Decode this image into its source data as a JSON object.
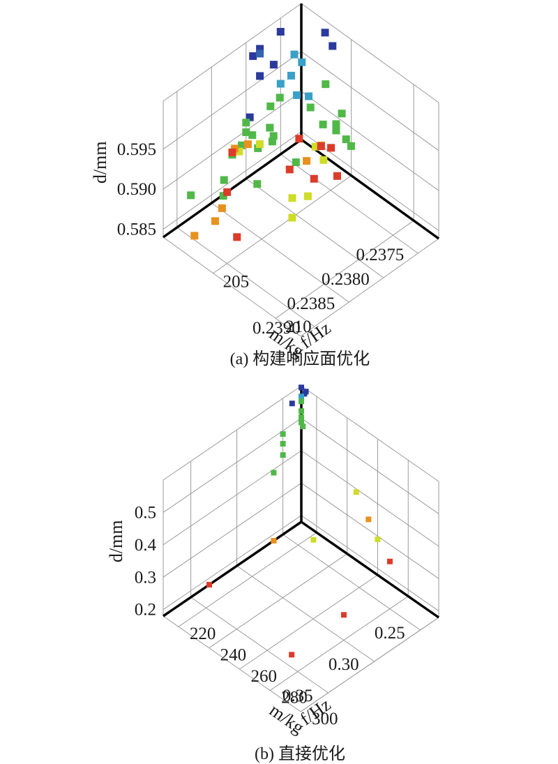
{
  "chart_data": [
    {
      "type": "scatter",
      "projection": "3d",
      "caption": "(a) 构建响应面优化",
      "xlabel": "m/kg",
      "ylabel": "f/Hz",
      "zlabel": "d/mm",
      "xticks": [
        "0.2375",
        "0.2380",
        "0.2385",
        "0.2390"
      ],
      "xtick_values": [
        0.2375,
        0.238,
        0.2385,
        0.239
      ],
      "yticks": [
        "205",
        "210"
      ],
      "ytick_values": [
        205,
        210
      ],
      "zticks": [
        "0.585",
        "0.590",
        "0.595"
      ],
      "ztick_values": [
        0.585,
        0.59,
        0.595
      ],
      "xlim": [
        0.2372,
        0.2392
      ],
      "ylim": [
        201,
        212
      ],
      "zlim": [
        0.584,
        0.601
      ],
      "grid": true,
      "colormap": "jet",
      "color_by": "z (descending)",
      "points": [
        {
          "x": 0.2372,
          "y": 203.5,
          "z": 0.5985,
          "c": "#2b3a9c"
        },
        {
          "x": 0.2372,
          "y": 202.9,
          "z": 0.5995,
          "c": "#2b3a9c"
        },
        {
          "x": 0.2378,
          "y": 201.0,
          "z": 0.599,
          "c": "#2b3a9c"
        },
        {
          "x": 0.2379,
          "y": 201.0,
          "z": 0.5987,
          "c": "#2b3a9c"
        },
        {
          "x": 0.2375,
          "y": 201.0,
          "z": 0.5993,
          "c": "#2b3a9c"
        },
        {
          "x": 0.2378,
          "y": 201.0,
          "z": 0.5984,
          "c": "#3464b0"
        },
        {
          "x": 0.2378,
          "y": 201.0,
          "z": 0.5956,
          "c": "#2b3a9c"
        },
        {
          "x": 0.2376,
          "y": 201.0,
          "z": 0.5958,
          "c": "#2b3a9c"
        },
        {
          "x": 0.238,
          "y": 201.3,
          "z": 0.592,
          "c": "#2b3a9c"
        },
        {
          "x": 0.2375,
          "y": 202.1,
          "z": 0.5977,
          "c": "#3aa0c8"
        },
        {
          "x": 0.2375,
          "y": 202.7,
          "z": 0.5974,
          "c": "#3aa0c8"
        },
        {
          "x": 0.2376,
          "y": 202.4,
          "z": 0.596,
          "c": "#3aa0c8"
        },
        {
          "x": 0.2376,
          "y": 203.8,
          "z": 0.595,
          "c": "#3aa0c8"
        },
        {
          "x": 0.2377,
          "y": 203.4,
          "z": 0.5953,
          "c": "#3aa0c8"
        },
        {
          "x": 0.2375,
          "y": 201.0,
          "z": 0.5928,
          "c": "#3aa0c8"
        },
        {
          "x": 0.2375,
          "y": 204.6,
          "z": 0.5968,
          "c": "#50b848"
        },
        {
          "x": 0.2375,
          "y": 205.9,
          "z": 0.5946,
          "c": "#50b848"
        },
        {
          "x": 0.2376,
          "y": 206.0,
          "z": 0.594,
          "c": "#50b848"
        },
        {
          "x": 0.2377,
          "y": 205.5,
          "z": 0.594,
          "c": "#50b848"
        },
        {
          "x": 0.2376,
          "y": 206.0,
          "z": 0.5932,
          "c": "#50b848"
        },
        {
          "x": 0.2376,
          "y": 206.8,
          "z": 0.593,
          "c": "#50b848"
        },
        {
          "x": 0.2376,
          "y": 207.2,
          "z": 0.5926,
          "c": "#50b848"
        },
        {
          "x": 0.2377,
          "y": 204.5,
          "z": 0.595,
          "c": "#50b848"
        },
        {
          "x": 0.2378,
          "y": 202.6,
          "z": 0.5947,
          "c": "#50b848"
        },
        {
          "x": 0.2379,
          "y": 202.4,
          "z": 0.594,
          "c": "#50b848"
        },
        {
          "x": 0.2382,
          "y": 206.1,
          "z": 0.593,
          "c": "#50b848"
        },
        {
          "x": 0.238,
          "y": 202.9,
          "z": 0.5925,
          "c": "#50b848"
        },
        {
          "x": 0.238,
          "y": 203.2,
          "z": 0.5918,
          "c": "#50b848"
        },
        {
          "x": 0.238,
          "y": 203.1,
          "z": 0.591,
          "c": "#50b848"
        },
        {
          "x": 0.238,
          "y": 201.0,
          "z": 0.591,
          "c": "#50b848"
        },
        {
          "x": 0.238,
          "y": 201.0,
          "z": 0.5898,
          "c": "#50b848"
        },
        {
          "x": 0.238,
          "y": 201.5,
          "z": 0.59,
          "c": "#50b848"
        },
        {
          "x": 0.2381,
          "y": 202.5,
          "z": 0.5901,
          "c": "#50b848"
        },
        {
          "x": 0.2381,
          "y": 201.2,
          "z": 0.589,
          "c": "#50b848"
        },
        {
          "x": 0.2382,
          "y": 201.0,
          "z": 0.5882,
          "c": "#50b848"
        },
        {
          "x": 0.2382,
          "y": 203.0,
          "z": 0.5868,
          "c": "#50b848"
        },
        {
          "x": 0.2385,
          "y": 202.0,
          "z": 0.588,
          "c": "#50b848"
        },
        {
          "x": 0.2386,
          "y": 202.5,
          "z": 0.5872,
          "c": "#50b848"
        },
        {
          "x": 0.2388,
          "y": 201.0,
          "z": 0.5868,
          "c": "#50b848"
        },
        {
          "x": 0.2381,
          "y": 201.0,
          "z": 0.588,
          "c": "#cfdc28"
        },
        {
          "x": 0.2382,
          "y": 203.2,
          "z": 0.592,
          "c": "#cfdc28"
        },
        {
          "x": 0.2379,
          "y": 206.0,
          "z": 0.593,
          "c": "#cfdc28"
        },
        {
          "x": 0.238,
          "y": 207.2,
          "z": 0.5933,
          "c": "#cfdc28"
        },
        {
          "x": 0.2382,
          "y": 205.8,
          "z": 0.5882,
          "c": "#cfdc28"
        },
        {
          "x": 0.2381,
          "y": 206.5,
          "z": 0.5886,
          "c": "#cfdc28"
        },
        {
          "x": 0.2384,
          "y": 206.9,
          "z": 0.5882,
          "c": "#cfdc28"
        },
        {
          "x": 0.238,
          "y": 207.0,
          "z": 0.5949,
          "c": "#e8911e"
        },
        {
          "x": 0.2381,
          "y": 206.4,
          "z": 0.5929,
          "c": "#e8911e"
        },
        {
          "x": 0.2381,
          "y": 201.7,
          "z": 0.5897,
          "c": "#e8911e"
        },
        {
          "x": 0.2382,
          "y": 201.2,
          "z": 0.5892,
          "c": "#e8911e"
        },
        {
          "x": 0.2388,
          "y": 203.5,
          "z": 0.588,
          "c": "#e8911e"
        },
        {
          "x": 0.2389,
          "y": 203.5,
          "z": 0.587,
          "c": "#e8911e"
        },
        {
          "x": 0.2392,
          "y": 203.5,
          "z": 0.587,
          "c": "#e8911e"
        },
        {
          "x": 0.2381,
          "y": 205.8,
          "z": 0.595,
          "c": "#dd3b2a"
        },
        {
          "x": 0.238,
          "y": 207.8,
          "z": 0.5955,
          "c": "#dd3b2a"
        },
        {
          "x": 0.238,
          "y": 207.0,
          "z": 0.5948,
          "c": "#dd3b2a"
        },
        {
          "x": 0.2382,
          "y": 209.4,
          "z": 0.595,
          "c": "#dd3b2a"
        },
        {
          "x": 0.2384,
          "y": 206.7,
          "z": 0.594,
          "c": "#dd3b2a"
        },
        {
          "x": 0.2383,
          "y": 208.1,
          "z": 0.5938,
          "c": "#dd3b2a"
        },
        {
          "x": 0.2382,
          "y": 201.0,
          "z": 0.5885,
          "c": "#dd3b2a"
        },
        {
          "x": 0.2386,
          "y": 202.8,
          "z": 0.588,
          "c": "#dd3b2a"
        },
        {
          "x": 0.239,
          "y": 205.8,
          "z": 0.5882,
          "c": "#dd3b2a"
        }
      ]
    },
    {
      "type": "scatter",
      "projection": "3d",
      "caption": "(b) 直接优化",
      "xlabel": "m/kg",
      "ylabel": "f/Hz",
      "zlabel": "d/mm",
      "xticks": [
        "0.25",
        "0.30",
        "0.35"
      ],
      "xtick_values": [
        0.25,
        0.3,
        0.35
      ],
      "yticks": [
        "220",
        "240",
        "260",
        "280",
        "300"
      ],
      "ytick_values": [
        220,
        240,
        260,
        280,
        300
      ],
      "zticks": [
        "0.2",
        "0.3",
        "0.4",
        "0.5"
      ],
      "ztick_values": [
        0.2,
        0.3,
        0.4,
        0.5
      ],
      "xlim": [
        0.23,
        0.38
      ],
      "ylim": [
        210,
        300
      ],
      "zlim": [
        0.18,
        0.6
      ],
      "grid": true,
      "colormap": "jet",
      "color_by": "z (descending)",
      "points": [
        {
          "x": 0.23,
          "y": 213.0,
          "z": 0.592,
          "c": "#2b3a9c"
        },
        {
          "x": 0.23,
          "y": 212.0,
          "z": 0.582,
          "c": "#2b3a9c"
        },
        {
          "x": 0.23,
          "y": 210.0,
          "z": 0.595,
          "c": "#2b3a9c"
        },
        {
          "x": 0.24,
          "y": 210.0,
          "z": 0.565,
          "c": "#2b3a9c"
        },
        {
          "x": 0.23,
          "y": 210.0,
          "z": 0.567,
          "c": "#3aa0c8"
        },
        {
          "x": 0.23,
          "y": 210.0,
          "z": 0.552,
          "c": "#50b848"
        },
        {
          "x": 0.23,
          "y": 210.0,
          "z": 0.522,
          "c": "#50b848"
        },
        {
          "x": 0.23,
          "y": 210.0,
          "z": 0.503,
          "c": "#50b848"
        },
        {
          "x": 0.23,
          "y": 210.0,
          "z": 0.487,
          "c": "#50b848"
        },
        {
          "x": 0.23,
          "y": 211.0,
          "z": 0.478,
          "c": "#50b848"
        },
        {
          "x": 0.25,
          "y": 210.0,
          "z": 0.49,
          "c": "#50b848"
        },
        {
          "x": 0.25,
          "y": 210.0,
          "z": 0.46,
          "c": "#50b848"
        },
        {
          "x": 0.25,
          "y": 210.0,
          "z": 0.425,
          "c": "#50b848"
        },
        {
          "x": 0.26,
          "y": 210.0,
          "z": 0.39,
          "c": "#50b848"
        },
        {
          "x": 0.23,
          "y": 246.0,
          "z": 0.39,
          "c": "#cfdc28"
        },
        {
          "x": 0.23,
          "y": 260.0,
          "z": 0.29,
          "c": "#cfdc28"
        },
        {
          "x": 0.24,
          "y": 224.0,
          "z": 0.19,
          "c": "#cfdc28"
        },
        {
          "x": 0.23,
          "y": 254.0,
          "z": 0.332,
          "c": "#e8911e"
        },
        {
          "x": 0.26,
          "y": 210.0,
          "z": 0.18,
          "c": "#e8911e"
        },
        {
          "x": 0.23,
          "y": 268.0,
          "z": 0.248,
          "c": "#dd3b2a"
        },
        {
          "x": 0.33,
          "y": 210.0,
          "z": 0.18,
          "c": "#dd3b2a"
        },
        {
          "x": 0.28,
          "y": 268.0,
          "z": 0.18,
          "c": "#dd3b2a"
        },
        {
          "x": 0.34,
          "y": 270.0,
          "z": 0.18,
          "c": "#dd3b2a"
        }
      ]
    }
  ]
}
